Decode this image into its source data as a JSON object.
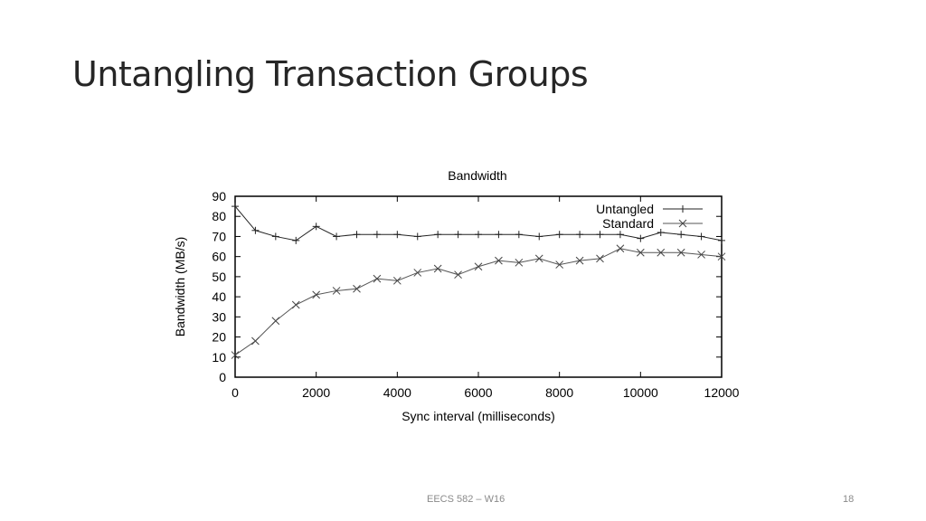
{
  "slide": {
    "title": "Untangling Transaction Groups",
    "footer_course": "EECS 582 – W16",
    "page_number": "18"
  },
  "chart_data": {
    "type": "line",
    "title": "Bandwidth",
    "xlabel": "Sync interval (milliseconds)",
    "ylabel": "Bandwidth (MB/s)",
    "xlim": [
      0,
      12000
    ],
    "ylim": [
      0,
      90
    ],
    "xticks": [
      0,
      2000,
      4000,
      6000,
      8000,
      10000,
      12000
    ],
    "yticks": [
      0,
      10,
      20,
      30,
      40,
      50,
      60,
      70,
      80,
      90
    ],
    "grid": false,
    "legend_position": "top-right",
    "series": [
      {
        "name": "Untangled",
        "marker": "plus",
        "x": [
          0,
          500,
          1000,
          1500,
          2000,
          2500,
          3000,
          3500,
          4000,
          4500,
          5000,
          5500,
          6000,
          6500,
          7000,
          7500,
          8000,
          8500,
          9000,
          9500,
          10000,
          10500,
          11000,
          11500,
          12000
        ],
        "y": [
          85,
          73,
          70,
          68,
          75,
          70,
          71,
          71,
          71,
          70,
          71,
          71,
          71,
          71,
          71,
          70,
          71,
          71,
          71,
          71,
          69,
          72,
          71,
          70,
          68
        ]
      },
      {
        "name": "Standard",
        "marker": "cross",
        "x": [
          0,
          500,
          1000,
          1500,
          2000,
          2500,
          3000,
          3500,
          4000,
          4500,
          5000,
          5500,
          6000,
          6500,
          7000,
          7500,
          8000,
          8500,
          9000,
          9500,
          10000,
          10500,
          11000,
          11500,
          12000
        ],
        "y": [
          11,
          18,
          28,
          36,
          41,
          43,
          44,
          49,
          48,
          52,
          54,
          51,
          55,
          58,
          57,
          59,
          56,
          58,
          59,
          64,
          62,
          62,
          62,
          61,
          60
        ]
      }
    ]
  }
}
